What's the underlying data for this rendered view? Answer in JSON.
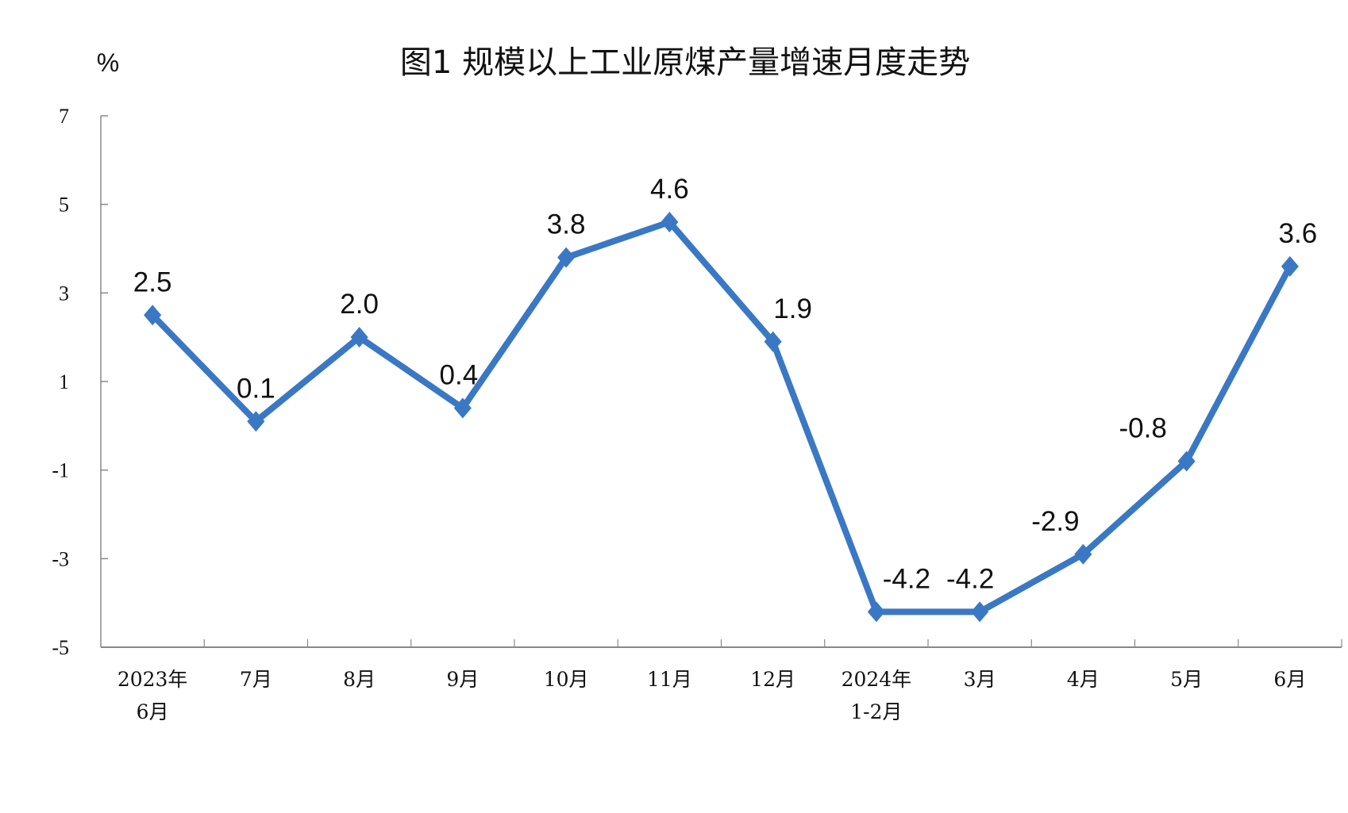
{
  "chart_data": {
    "type": "line",
    "title": "图1  规模以上工业原煤产量增速月度走势",
    "ylabel": "%",
    "xlabel": "",
    "categories": [
      [
        "2023年",
        "6月"
      ],
      [
        "7月"
      ],
      [
        "8月"
      ],
      [
        "9月"
      ],
      [
        "10月"
      ],
      [
        "11月"
      ],
      [
        "12月"
      ],
      [
        "2024年",
        "1-2月"
      ],
      [
        "3月"
      ],
      [
        "4月"
      ],
      [
        "5月"
      ],
      [
        "6月"
      ]
    ],
    "values": [
      2.5,
      0.1,
      2.0,
      0.4,
      3.8,
      4.6,
      1.9,
      -4.2,
      -4.2,
      -2.9,
      -0.8,
      3.6
    ],
    "data_labels": [
      "2.5",
      "0.1",
      "2.0",
      "0.4",
      "3.8",
      "4.6",
      "1.9",
      "-4.2",
      "-4.2",
      "-2.9",
      "-0.8",
      "3.6"
    ],
    "ylim": [
      -5,
      7
    ],
    "yticks": [
      7,
      5,
      3,
      1,
      -1,
      -3,
      -5
    ],
    "marker": "diamond",
    "grid": false,
    "legend": "none",
    "colors": {
      "line": "#3A78C4",
      "axis": "#888888",
      "text": "#111111"
    }
  }
}
